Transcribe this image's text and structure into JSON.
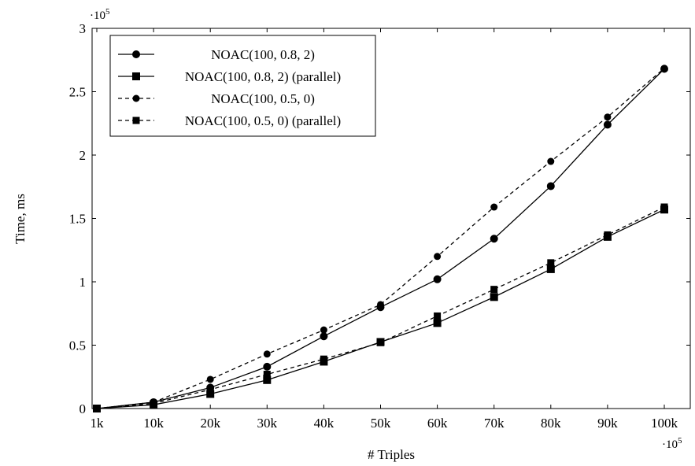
{
  "chart_data": {
    "type": "line",
    "xlabel": "# Triples",
    "ylabel": "Time, ms",
    "x_exponent_label": "·10",
    "x_exponent_power": "5",
    "y_exponent_label": "·10",
    "y_exponent_power": "5",
    "categories": [
      "1k",
      "10k",
      "20k",
      "30k",
      "40k",
      "50k",
      "60k",
      "70k",
      "80k",
      "90k",
      "100k"
    ],
    "ylim": [
      0,
      3
    ],
    "yticks": [
      "0",
      "0.5",
      "1",
      "1.5",
      "2",
      "2.5",
      "3"
    ],
    "ytick_values": [
      0,
      0.5,
      1,
      1.5,
      2,
      2.5,
      3
    ],
    "grid": false,
    "legend_position": "top-left",
    "series": [
      {
        "name": "NOAC(100, 0.8, 2)",
        "marker": "circle",
        "dashed": false,
        "values": [
          0,
          0.05,
          0.165,
          0.33,
          0.57,
          0.8,
          1.02,
          1.34,
          1.755,
          2.24,
          2.68
        ]
      },
      {
        "name": "NOAC(100, 0.8, 2) (parallel)",
        "marker": "square",
        "dashed": false,
        "values": [
          0,
          0.03,
          0.115,
          0.225,
          0.37,
          0.525,
          0.675,
          0.88,
          1.1,
          1.355,
          1.57
        ]
      },
      {
        "name": "NOAC(100, 0.5, 0)",
        "marker": "circle",
        "dashed": true,
        "values": [
          0,
          0.05,
          0.23,
          0.43,
          0.62,
          0.82,
          1.2,
          1.59,
          1.95,
          2.3,
          2.685
        ]
      },
      {
        "name": "NOAC(100, 0.5, 0) (parallel)",
        "marker": "square",
        "dashed": true,
        "values": [
          0,
          0.04,
          0.15,
          0.27,
          0.39,
          0.52,
          0.73,
          0.94,
          1.15,
          1.37,
          1.59
        ]
      }
    ]
  }
}
